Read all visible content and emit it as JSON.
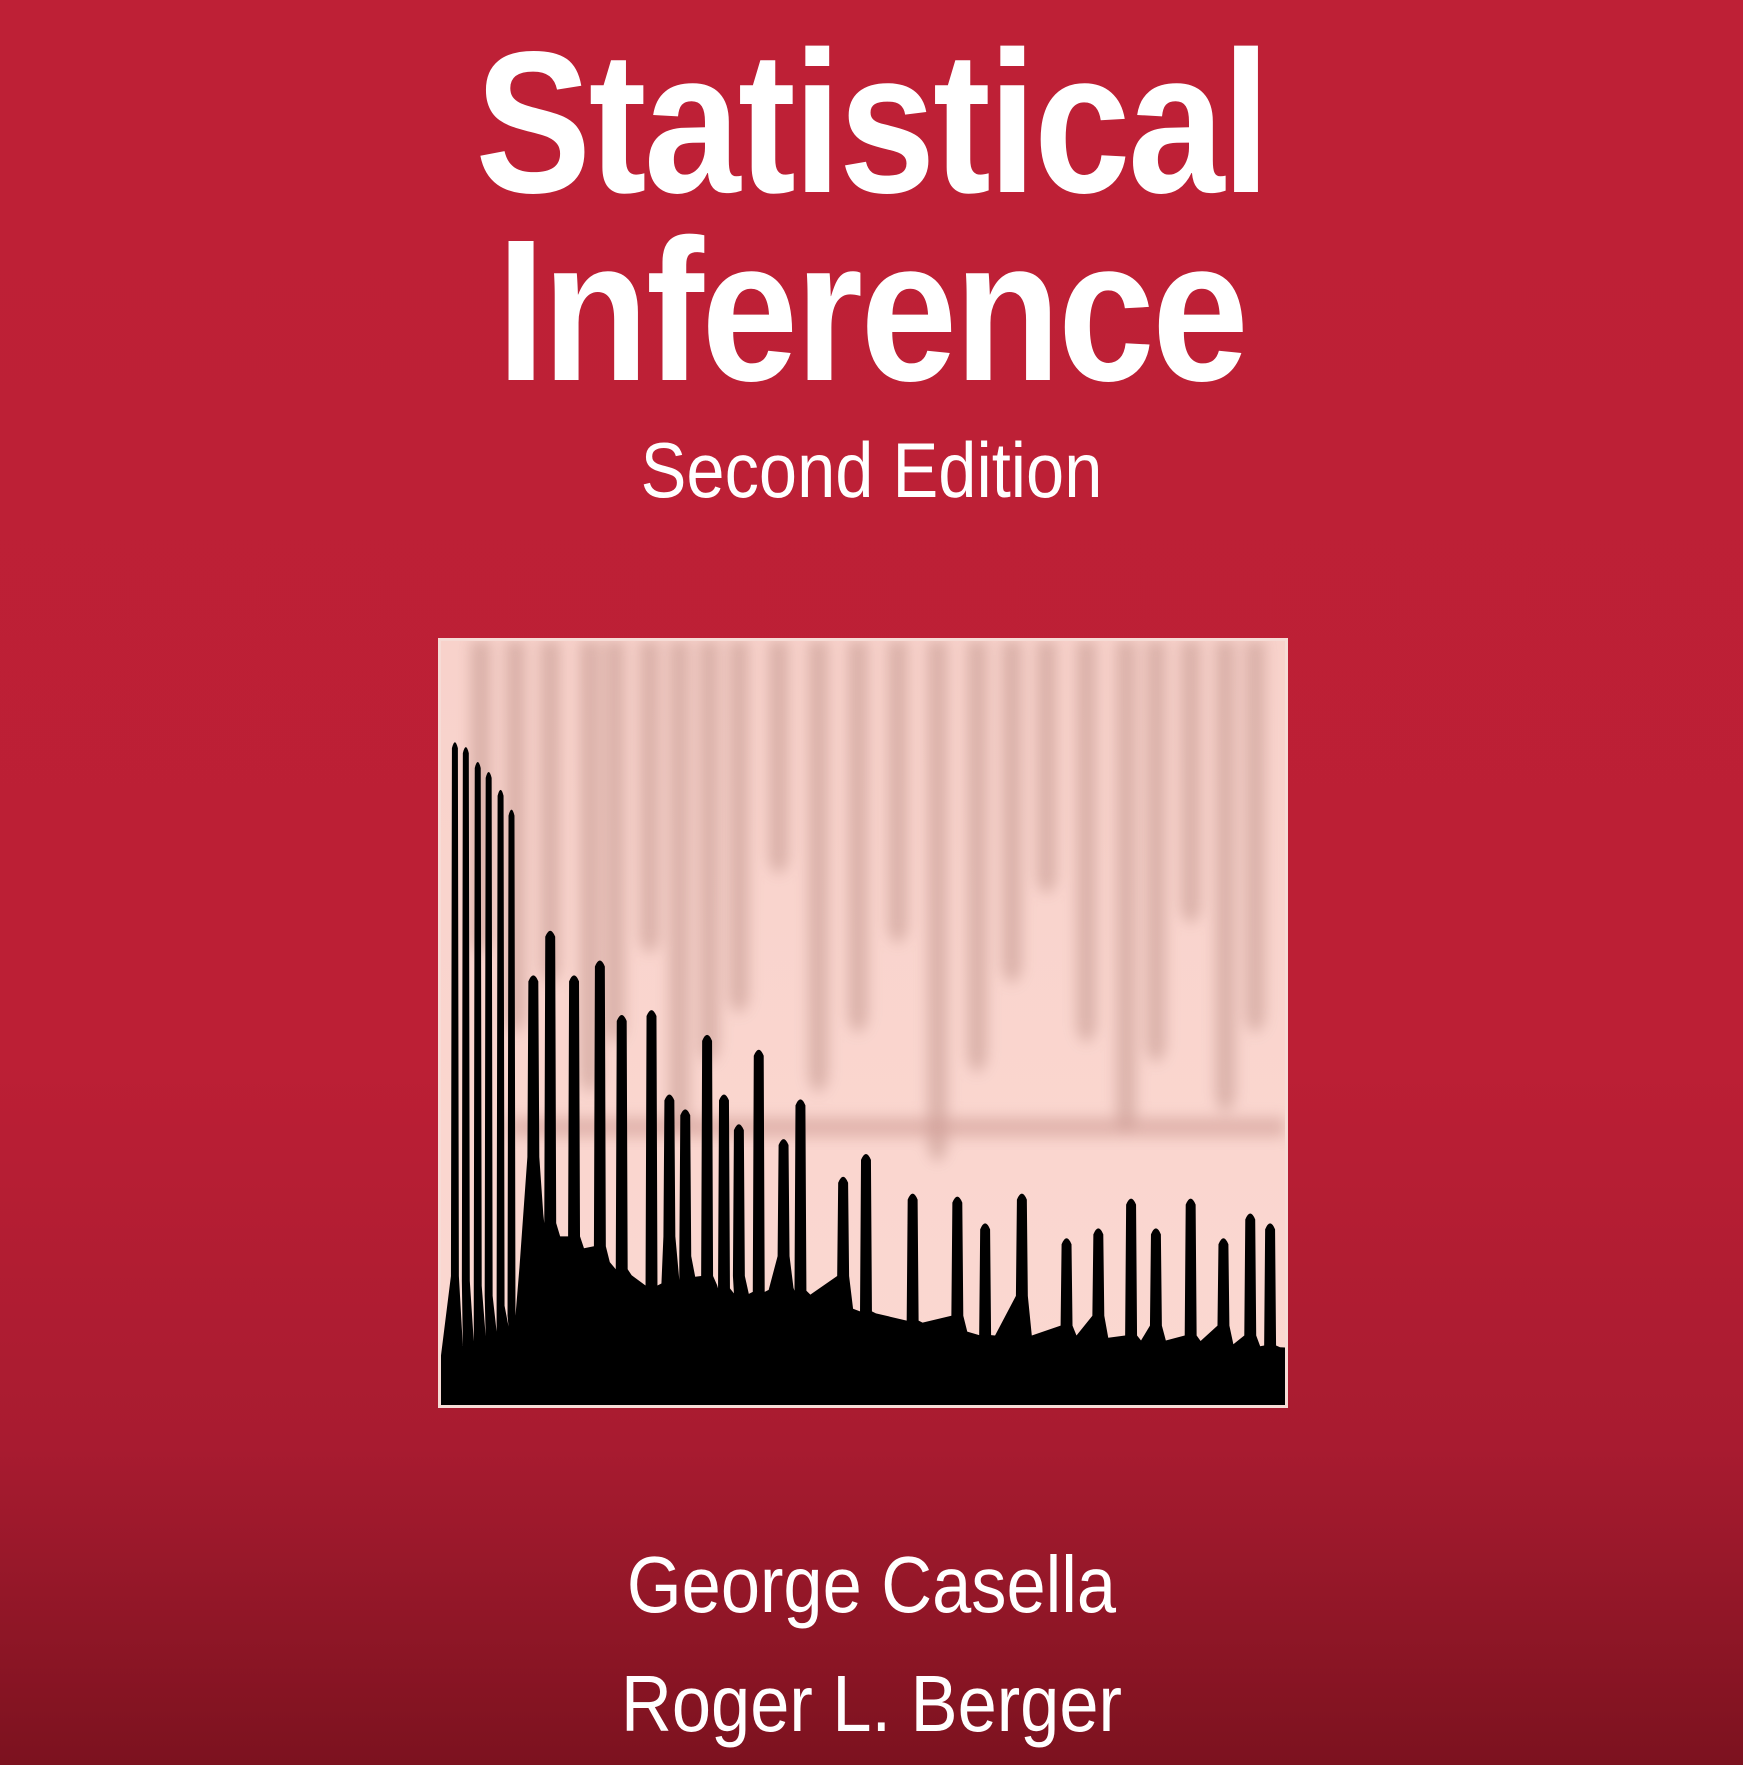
{
  "cover": {
    "title_line_1": "Statistical",
    "title_line_2": "Inference",
    "edition": "Second Edition",
    "authors": [
      "George Casella",
      "Roger L. Berger"
    ],
    "colors": {
      "background": "#be2036",
      "background_bottom": "#7c121f",
      "text": "#ffffff",
      "art_background": "#f9d3cc",
      "art_silhouette": "#000000"
    },
    "artwork": "black jagged spike silhouette with blurred pink reflection"
  }
}
